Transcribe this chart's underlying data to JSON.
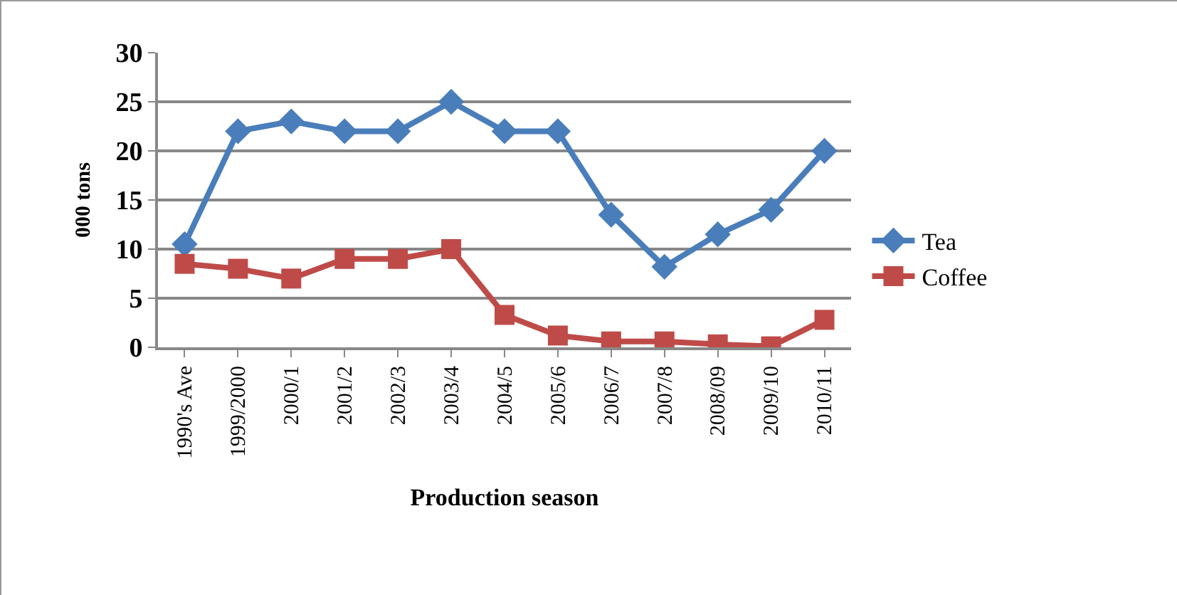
{
  "chart_data": {
    "type": "line",
    "xlabel": "Production season",
    "ylabel": "000 tons",
    "categories": [
      "1990's Ave",
      "1999/2000",
      "2000/1",
      "2001/2",
      "2002/3",
      "2003/4",
      "2004/5",
      "2005/6",
      "2006/7",
      "2007/8",
      "2008/09",
      "2009/10",
      "2010/11"
    ],
    "series": [
      {
        "name": "Tea",
        "color": "#4a7ebb",
        "marker": "diamond",
        "values": [
          10.5,
          22,
          23,
          22,
          22,
          25,
          22,
          22,
          13.5,
          8.2,
          11.5,
          14,
          20
        ]
      },
      {
        "name": "Coffee",
        "color": "#be4b48",
        "marker": "square",
        "values": [
          8.5,
          8,
          7,
          9,
          9,
          10,
          3.3,
          1.2,
          0.6,
          0.6,
          0.3,
          0.1,
          2.8
        ]
      }
    ],
    "ylim": [
      0,
      30
    ],
    "yticks": [
      0,
      5,
      10,
      15,
      20,
      25,
      30
    ],
    "grid": "y",
    "legend": "right",
    "line_style": "solid"
  }
}
